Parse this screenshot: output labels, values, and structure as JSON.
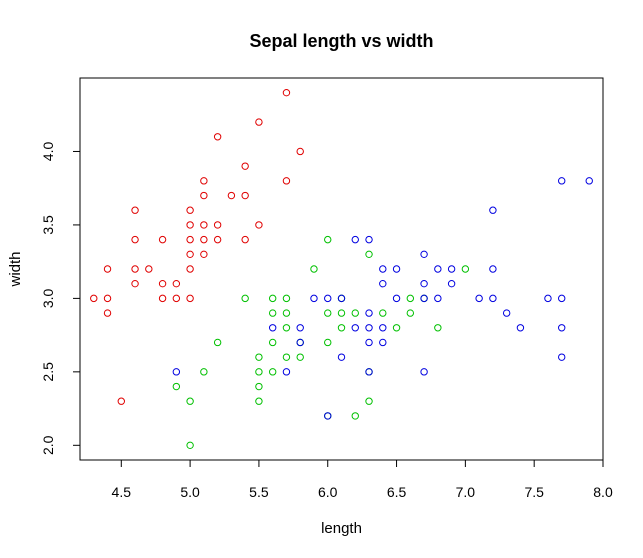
{
  "chart_data": {
    "type": "scatter",
    "title": "Sepal length vs width",
    "xlabel": "length",
    "ylabel": "width",
    "xlim": [
      4.2,
      8.0
    ],
    "ylim": [
      1.9,
      4.5
    ],
    "xticks": [
      4.5,
      5.0,
      5.5,
      6.0,
      6.5,
      7.0,
      7.5,
      8.0
    ],
    "xtick_labels": [
      "4.5",
      "5.0",
      "5.5",
      "6.0",
      "6.5",
      "7.0",
      "7.5",
      "8.0"
    ],
    "yticks": [
      2.0,
      2.5,
      3.0,
      3.5,
      4.0
    ],
    "ytick_labels": [
      "2.0",
      "2.5",
      "3.0",
      "3.5",
      "4.0"
    ],
    "grid": false,
    "legend": "none",
    "series": [
      {
        "color": "#e00000",
        "points": [
          [
            4.3,
            3.0
          ],
          [
            4.4,
            3.0
          ],
          [
            4.4,
            3.2
          ],
          [
            4.4,
            2.9
          ],
          [
            4.5,
            2.3
          ],
          [
            4.6,
            3.1
          ],
          [
            4.6,
            3.2
          ],
          [
            4.6,
            3.4
          ],
          [
            4.6,
            3.6
          ],
          [
            4.7,
            3.2
          ],
          [
            4.8,
            3.0
          ],
          [
            4.8,
            3.1
          ],
          [
            4.8,
            3.4
          ],
          [
            4.9,
            3.0
          ],
          [
            4.9,
            3.1
          ],
          [
            5.0,
            3.0
          ],
          [
            5.0,
            3.2
          ],
          [
            5.0,
            3.3
          ],
          [
            5.0,
            3.4
          ],
          [
            5.0,
            3.5
          ],
          [
            5.0,
            3.6
          ],
          [
            5.1,
            3.3
          ],
          [
            5.1,
            3.4
          ],
          [
            5.1,
            3.5
          ],
          [
            5.1,
            3.7
          ],
          [
            5.1,
            3.8
          ],
          [
            5.2,
            3.4
          ],
          [
            5.2,
            3.5
          ],
          [
            5.2,
            4.1
          ],
          [
            5.3,
            3.7
          ],
          [
            5.4,
            3.4
          ],
          [
            5.4,
            3.7
          ],
          [
            5.4,
            3.9
          ],
          [
            5.5,
            3.5
          ],
          [
            5.5,
            4.2
          ],
          [
            5.7,
            3.8
          ],
          [
            5.7,
            4.4
          ],
          [
            5.8,
            4.0
          ]
        ]
      },
      {
        "color": "#00c000",
        "points": [
          [
            4.9,
            2.4
          ],
          [
            5.0,
            2.0
          ],
          [
            5.0,
            2.3
          ],
          [
            5.1,
            2.5
          ],
          [
            5.2,
            2.7
          ],
          [
            5.4,
            3.0
          ],
          [
            5.5,
            2.3
          ],
          [
            5.5,
            2.4
          ],
          [
            5.5,
            2.5
          ],
          [
            5.5,
            2.6
          ],
          [
            5.6,
            2.5
          ],
          [
            5.6,
            2.7
          ],
          [
            5.6,
            2.9
          ],
          [
            5.6,
            3.0
          ],
          [
            5.7,
            2.6
          ],
          [
            5.7,
            2.8
          ],
          [
            5.7,
            2.9
          ],
          [
            5.7,
            3.0
          ],
          [
            5.8,
            2.6
          ],
          [
            5.8,
            2.7
          ],
          [
            5.9,
            3.2
          ],
          [
            6.0,
            2.2
          ],
          [
            6.0,
            2.7
          ],
          [
            6.0,
            2.9
          ],
          [
            6.0,
            3.4
          ],
          [
            6.1,
            2.8
          ],
          [
            6.1,
            2.9
          ],
          [
            6.1,
            3.0
          ],
          [
            6.2,
            2.2
          ],
          [
            6.2,
            2.9
          ],
          [
            6.3,
            2.3
          ],
          [
            6.3,
            2.5
          ],
          [
            6.3,
            3.3
          ],
          [
            6.4,
            2.9
          ],
          [
            6.5,
            2.8
          ],
          [
            6.6,
            2.9
          ],
          [
            6.6,
            3.0
          ],
          [
            6.7,
            3.0
          ],
          [
            6.8,
            2.8
          ],
          [
            7.0,
            3.2
          ]
        ]
      },
      {
        "color": "#0000e0",
        "points": [
          [
            4.9,
            2.5
          ],
          [
            5.6,
            2.8
          ],
          [
            5.7,
            2.5
          ],
          [
            5.8,
            2.7
          ],
          [
            5.8,
            2.8
          ],
          [
            5.9,
            3.0
          ],
          [
            6.0,
            2.2
          ],
          [
            6.0,
            3.0
          ],
          [
            6.1,
            2.6
          ],
          [
            6.1,
            3.0
          ],
          [
            6.2,
            2.8
          ],
          [
            6.2,
            3.4
          ],
          [
            6.3,
            2.5
          ],
          [
            6.3,
            2.7
          ],
          [
            6.3,
            2.8
          ],
          [
            6.3,
            2.9
          ],
          [
            6.3,
            3.4
          ],
          [
            6.4,
            2.7
          ],
          [
            6.4,
            2.8
          ],
          [
            6.4,
            3.1
          ],
          [
            6.4,
            3.2
          ],
          [
            6.5,
            3.0
          ],
          [
            6.5,
            3.2
          ],
          [
            6.7,
            2.5
          ],
          [
            6.7,
            3.0
          ],
          [
            6.7,
            3.1
          ],
          [
            6.7,
            3.3
          ],
          [
            6.8,
            3.0
          ],
          [
            6.8,
            3.2
          ],
          [
            6.9,
            3.1
          ],
          [
            6.9,
            3.2
          ],
          [
            7.1,
            3.0
          ],
          [
            7.2,
            3.0
          ],
          [
            7.2,
            3.2
          ],
          [
            7.2,
            3.6
          ],
          [
            7.3,
            2.9
          ],
          [
            7.4,
            2.8
          ],
          [
            7.6,
            3.0
          ],
          [
            7.7,
            2.6
          ],
          [
            7.7,
            2.8
          ],
          [
            7.7,
            3.0
          ],
          [
            7.7,
            3.8
          ],
          [
            7.9,
            3.8
          ]
        ]
      }
    ]
  }
}
